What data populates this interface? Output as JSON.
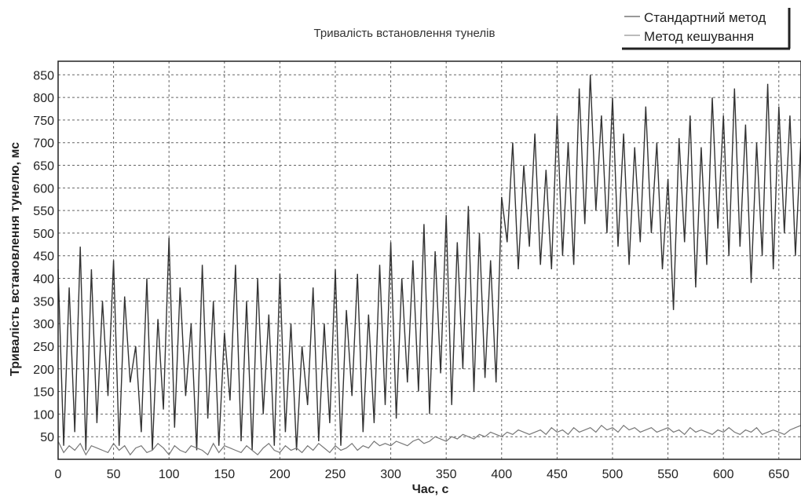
{
  "chart_data": {
    "type": "line",
    "title": "Тривалість встановлення тунелів",
    "xlabel": "Час, с",
    "ylabel": "Тривалість встановлення тунелю, мс",
    "xlim": [
      0,
      670
    ],
    "ylim": [
      0,
      880
    ],
    "xticks": [
      0,
      50,
      100,
      150,
      200,
      250,
      300,
      350,
      400,
      450,
      500,
      550,
      600,
      650
    ],
    "yticks": [
      50,
      100,
      150,
      200,
      250,
      300,
      350,
      400,
      450,
      500,
      550,
      600,
      650,
      700,
      750,
      800,
      850
    ],
    "grid": true,
    "legend_position": "top-right",
    "x": [
      0,
      5,
      10,
      15,
      20,
      25,
      30,
      35,
      40,
      45,
      50,
      55,
      60,
      65,
      70,
      75,
      80,
      85,
      90,
      95,
      100,
      105,
      110,
      115,
      120,
      125,
      130,
      135,
      140,
      145,
      150,
      155,
      160,
      165,
      170,
      175,
      180,
      185,
      190,
      195,
      200,
      205,
      210,
      215,
      220,
      225,
      230,
      235,
      240,
      245,
      250,
      255,
      260,
      265,
      270,
      275,
      280,
      285,
      290,
      295,
      300,
      305,
      310,
      315,
      320,
      325,
      330,
      335,
      340,
      345,
      350,
      355,
      360,
      365,
      370,
      375,
      380,
      385,
      390,
      395,
      400,
      405,
      410,
      415,
      420,
      425,
      430,
      435,
      440,
      445,
      450,
      455,
      460,
      465,
      470,
      475,
      480,
      485,
      490,
      495,
      500,
      505,
      510,
      515,
      520,
      525,
      530,
      535,
      540,
      545,
      550,
      555,
      560,
      565,
      570,
      575,
      580,
      585,
      590,
      595,
      600,
      605,
      610,
      615,
      620,
      625,
      630,
      635,
      640,
      645,
      650,
      655,
      660,
      665,
      670
    ],
    "series": [
      {
        "name": "Стандартний метод",
        "color": "#333333",
        "values": [
          420,
          30,
          380,
          60,
          470,
          20,
          420,
          80,
          350,
          140,
          440,
          30,
          360,
          170,
          250,
          60,
          400,
          20,
          310,
          110,
          490,
          70,
          380,
          140,
          300,
          20,
          430,
          90,
          350,
          30,
          280,
          130,
          430,
          40,
          350,
          20,
          400,
          100,
          320,
          30,
          410,
          60,
          300,
          20,
          250,
          120,
          380,
          40,
          300,
          80,
          420,
          30,
          330,
          140,
          410,
          60,
          320,
          80,
          430,
          120,
          480,
          90,
          400,
          170,
          440,
          150,
          520,
          100,
          460,
          190,
          540,
          120,
          480,
          200,
          560,
          150,
          500,
          180,
          440,
          170,
          580,
          480,
          700,
          420,
          650,
          470,
          720,
          430,
          640,
          420,
          760,
          450,
          700,
          430,
          820,
          520,
          850,
          550,
          760,
          500,
          800,
          470,
          720,
          430,
          690,
          480,
          780,
          500,
          700,
          420,
          620,
          330,
          710,
          480,
          760,
          380,
          690,
          430,
          800,
          510,
          760,
          450,
          820,
          470,
          740,
          390,
          700,
          450,
          830,
          420,
          780,
          500,
          760,
          450,
          710
        ]
      },
      {
        "name": "Метод кешування",
        "color": "#777777",
        "values": [
          40,
          15,
          30,
          20,
          35,
          10,
          30,
          25,
          20,
          15,
          35,
          20,
          30,
          10,
          25,
          30,
          15,
          20,
          35,
          25,
          10,
          30,
          20,
          15,
          30,
          25,
          20,
          10,
          35,
          15,
          30,
          25,
          20,
          15,
          30,
          20,
          10,
          25,
          35,
          20,
          15,
          30,
          20,
          25,
          15,
          30,
          20,
          35,
          25,
          15,
          30,
          20,
          25,
          35,
          20,
          30,
          25,
          40,
          30,
          35,
          30,
          40,
          35,
          30,
          40,
          45,
          35,
          40,
          50,
          45,
          40,
          50,
          45,
          55,
          50,
          45,
          55,
          50,
          60,
          55,
          50,
          60,
          55,
          65,
          60,
          55,
          60,
          65,
          55,
          70,
          60,
          65,
          55,
          70,
          60,
          65,
          70,
          60,
          75,
          65,
          70,
          60,
          75,
          65,
          70,
          60,
          65,
          70,
          60,
          65,
          70,
          60,
          65,
          55,
          70,
          60,
          65,
          60,
          55,
          65,
          60,
          70,
          60,
          55,
          65,
          60,
          70,
          55,
          60,
          65,
          60,
          55,
          65,
          70,
          75
        ]
      }
    ]
  }
}
